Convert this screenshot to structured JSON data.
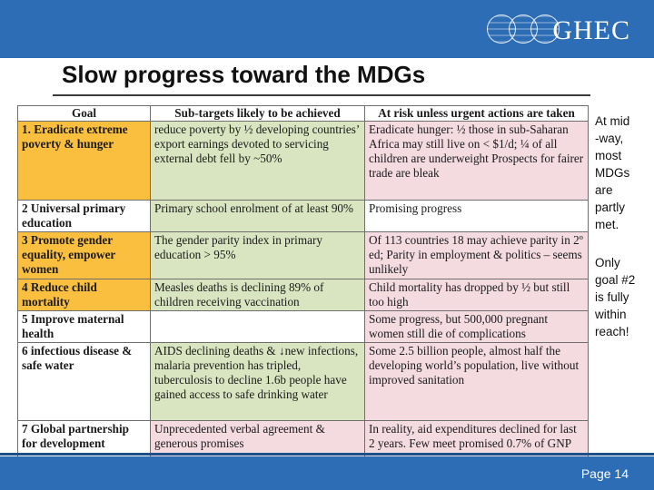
{
  "logo": {
    "text": "GHEC"
  },
  "title": "Slow progress toward the MDGs",
  "table": {
    "headers": [
      "Goal",
      "Sub-targets likely to be achieved",
      "At risk unless urgent actions are taken"
    ],
    "rows": [
      {
        "goal": "1. Eradicate extreme poverty & hunger",
        "sub": "reduce poverty by ½ developing countries’ export earnings devoted to servicing external debt fell by ~50%",
        "risk": "Eradicate hunger: ½ those in sub-Saharan Africa may still live on < $1/d; ¼ of all children are underweight Prospects for fairer trade are bleak"
      },
      {
        "goal": "2 Universal primary education",
        "sub": "Primary school enrolment of at least 90%",
        "risk": "Promising progress"
      },
      {
        "goal": "3 Promote gender equality, empower women",
        "sub": "The gender parity index in primary education > 95%",
        "risk": "Of 113 countries 18 may achieve parity in 2º ed; Parity in employment & politics – seems unlikely"
      },
      {
        "goal": "4 Reduce child mortality",
        "sub": "Measles deaths is declining 89% of children receiving vaccination",
        "risk": "Child mortality has dropped by ½ but still too high"
      },
      {
        "goal": "5 Improve maternal health",
        "sub": "",
        "risk": "Some progress, but 500,000 pregnant women still die of complications"
      },
      {
        "goal": "6 infectious disease & safe water",
        "sub": "AIDS declining deaths & ↓new infections, malaria prevention has tripled, tuberculosis to decline 1.6b people have gained access to safe drinking water",
        "risk": "Some 2.5 billion people, almost half the developing world’s population, live without improved sanitation"
      },
      {
        "goal": "7 Global partnership for development",
        "sub": "Unprecedented verbal agreement & generous promises",
        "risk": "In reality, aid expenditures declined for last 2 years. Few meet promised 0.7% of GNP"
      }
    ]
  },
  "side_note_1": "At mid\n-way,\nmost\nMDGs\nare\npartly\nmet.",
  "side_note_2": "Only\ngoal #2\nis fully\nwithin\nreach!",
  "footer": {
    "page": "Page 14"
  },
  "colors": {
    "header_band": "#2c6db5",
    "goal_orange": "#fbbf3f",
    "likely_green": "#d9e5c0",
    "risk_pink": "#f3dbe0"
  }
}
